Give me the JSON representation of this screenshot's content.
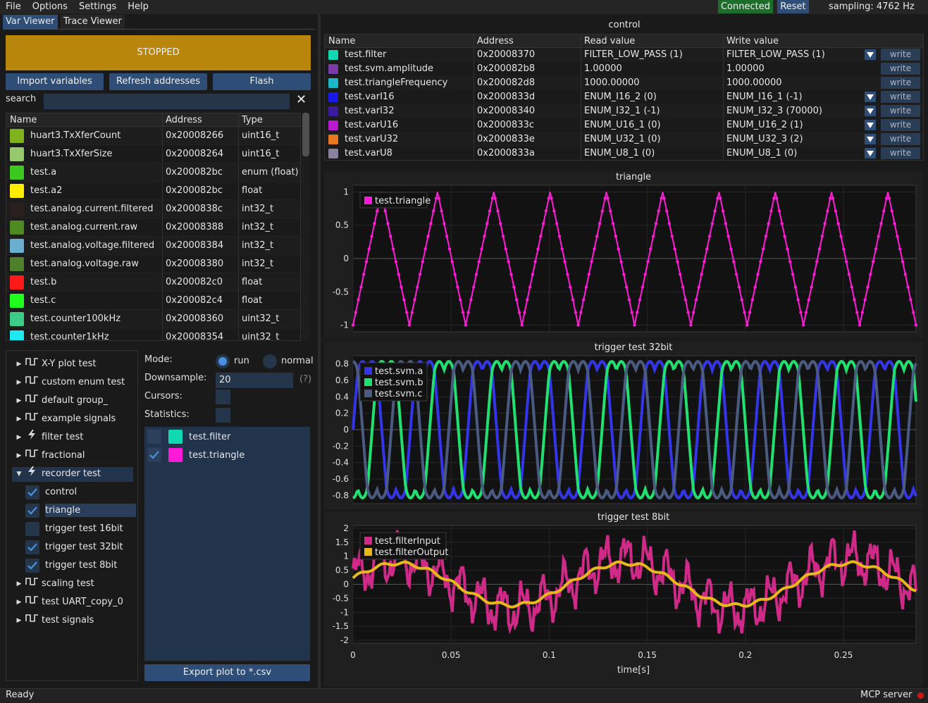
{
  "menubar": {
    "items": [
      "File",
      "Options",
      "Settings",
      "Help"
    ]
  },
  "status_top": {
    "connected": "Connected",
    "reset": "Reset",
    "sampling": "sampling: 4762 Hz"
  },
  "tabs": [
    "Var Viewer",
    "Trace Viewer"
  ],
  "state_button": "STOPPED",
  "toolbar": {
    "import": "Import variables",
    "refresh": "Refresh addresses",
    "flash": "Flash"
  },
  "search": {
    "label": "search",
    "value": "",
    "clear_icon": "close-icon"
  },
  "var_table": {
    "headers": [
      "Name",
      "Address",
      "Type"
    ],
    "rows": [
      {
        "name": "huart3.TxXferCount",
        "address": "0x20008266",
        "type": "uint16_t",
        "color": "#7fb21d"
      },
      {
        "name": "huart3.TxXferSize",
        "address": "0x20008264",
        "type": "uint16_t",
        "color": "#96c86e"
      },
      {
        "name": "test.a",
        "address": "0x200082bc",
        "type": "enum (float)",
        "color": "#3cc81e"
      },
      {
        "name": "test.a2",
        "address": "0x200082bc",
        "type": "float",
        "color": "#ffee00"
      },
      {
        "name": "test.analog.current.filtered",
        "address": "0x2000838c",
        "type": "int32_t",
        "color": "#2a201e"
      },
      {
        "name": "test.analog.current.raw",
        "address": "0x20008388",
        "type": "int32_t",
        "color": "#4e8a22"
      },
      {
        "name": "test.analog.voltage.filtered",
        "address": "0x20008384",
        "type": "int32_t",
        "color": "#6aaed0"
      },
      {
        "name": "test.analog.voltage.raw",
        "address": "0x20008380",
        "type": "int32_t",
        "color": "#4e7f2a"
      },
      {
        "name": "test.b",
        "address": "0x200082c0",
        "type": "float",
        "color": "#ff1a1a"
      },
      {
        "name": "test.c",
        "address": "0x200082c4",
        "type": "float",
        "color": "#1eff1e"
      },
      {
        "name": "test.counter100kHz",
        "address": "0x20008360",
        "type": "uint32_t",
        "color": "#3ccc88"
      },
      {
        "name": "test.counter1kHz",
        "address": "0x20008354",
        "type": "uint32_t",
        "color": "#1ee8f0"
      }
    ]
  },
  "tree": {
    "items": [
      {
        "label": "X-Y plot test",
        "icon": "waveform-icon",
        "expanded": false
      },
      {
        "label": "custom enum test",
        "icon": "waveform-icon",
        "expanded": false
      },
      {
        "label": "default group_",
        "icon": "waveform-icon",
        "expanded": false
      },
      {
        "label": "example signals",
        "icon": "waveform-icon",
        "expanded": false
      },
      {
        "label": "filter test",
        "icon": "lightning-icon",
        "expanded": false
      },
      {
        "label": "fractional",
        "icon": "waveform-icon",
        "expanded": false
      },
      {
        "label": "recorder test",
        "icon": "lightning-icon",
        "expanded": true
      },
      {
        "label": "control",
        "checked": true,
        "child": true
      },
      {
        "label": "triangle",
        "checked": true,
        "child": true,
        "selected": true
      },
      {
        "label": "trigger test 16bit",
        "checked": false,
        "child": true
      },
      {
        "label": "trigger test 32bit",
        "checked": true,
        "child": true
      },
      {
        "label": "trigger test 8bit",
        "checked": true,
        "child": true
      },
      {
        "label": "scaling test",
        "icon": "waveform-icon",
        "expanded": false
      },
      {
        "label": "test UART_copy_0",
        "icon": "waveform-icon",
        "expanded": false
      },
      {
        "label": "test signals",
        "icon": "waveform-icon",
        "expanded": false
      }
    ]
  },
  "plot_settings": {
    "mode_label": "Mode:",
    "mode_run": "run",
    "mode_normal": "normal",
    "downsample_label": "Downsample:",
    "downsample_value": "20",
    "downsample_help": "(?)",
    "cursors_label": "Cursors:",
    "statistics_label": "Statistics:"
  },
  "selected_vars": [
    {
      "name": "test.filter",
      "checked": false,
      "color": "#10d8b0"
    },
    {
      "name": "test.triangle",
      "checked": true,
      "color": "#ff1ad8"
    }
  ],
  "export_button": "Export plot to *.csv",
  "control": {
    "title": "control",
    "headers": [
      "Name",
      "Address",
      "Read value",
      "Write value"
    ],
    "write_label": "write",
    "rows": [
      {
        "name": "test.filter",
        "address": "0x20008370",
        "read": "FILTER_LOW_PASS (1)",
        "write": "FILTER_LOW_PASS (1)",
        "color": "#10d8b0",
        "dropdown": true
      },
      {
        "name": "test.svm.amplitude",
        "address": "0x200082b8",
        "read": "1.00000",
        "write": "1.00000",
        "color": "#7a3aa8",
        "dropdown": false
      },
      {
        "name": "test.triangleFrequency",
        "address": "0x200082d8",
        "read": "1000.00000",
        "write": "1000.00000",
        "color": "#1ab8c8",
        "dropdown": false
      },
      {
        "name": "test.varI16",
        "address": "0x2000833d",
        "read": "ENUM_I16_2 (0)",
        "write": "ENUM_I16_1 (-1)",
        "color": "#1a1ae8",
        "dropdown": true
      },
      {
        "name": "test.varI32",
        "address": "0x20008340",
        "read": "ENUM_I32_1 (-1)",
        "write": "ENUM_I32_3 (70000)",
        "color": "#3a1aa0",
        "dropdown": true
      },
      {
        "name": "test.varU16",
        "address": "0x2000833c",
        "read": "ENUM_U16_1 (0)",
        "write": "ENUM_U16_2 (1)",
        "color": "#b81ad0",
        "dropdown": true
      },
      {
        "name": "test.varU32",
        "address": "0x2000833e",
        "read": "ENUM_U32_1 (0)",
        "write": "ENUM_U32_3 (2)",
        "color": "#e87820",
        "dropdown": true
      },
      {
        "name": "test.varU8",
        "address": "0x2000833a",
        "read": "ENUM_U8_1 (0)",
        "write": "ENUM_U8_1 (0)",
        "color": "#8a80a0",
        "dropdown": true
      }
    ]
  },
  "chart_data": [
    {
      "type": "line",
      "title": "triangle",
      "ylim": [
        -1.1,
        1.1
      ],
      "yticks": [
        "1",
        "0.5",
        "0",
        "-0.5",
        "-1"
      ],
      "series": [
        {
          "name": "test.triangle",
          "color": "#ff1ad8",
          "shape": "triangle",
          "cycles": 10,
          "amplitude": 1
        }
      ]
    },
    {
      "type": "line",
      "title": "trigger test 32bit",
      "ylim": [
        -0.9,
        0.9
      ],
      "yticks": [
        "0.8",
        "0.6",
        "0.4",
        "0.2",
        "0",
        "-0.2",
        "-0.4",
        "-0.6",
        "-0.8"
      ],
      "series": [
        {
          "name": "test.svm.a",
          "color": "#3434e8",
          "phase": 0
        },
        {
          "name": "test.svm.b",
          "color": "#20e070",
          "phase": 2.094
        },
        {
          "name": "test.svm.c",
          "color": "#4a5a80",
          "phase": 4.189
        }
      ]
    },
    {
      "type": "line",
      "title": "trigger test 8bit",
      "xlabel": "time[s]",
      "xlim": [
        0,
        0.287
      ],
      "ylim": [
        -2.1,
        2.1
      ],
      "xticks": [
        "0",
        "0.05",
        "0.1",
        "0.15",
        "0.2",
        "0.25"
      ],
      "yticks": [
        "2",
        "1.5",
        "1",
        "0.5",
        "0",
        "-0.5",
        "-1",
        "-1.5",
        "-2"
      ],
      "series": [
        {
          "name": "test.filterInput",
          "color": "#d02a88"
        },
        {
          "name": "test.filterOutput",
          "color": "#e8b81a"
        }
      ]
    }
  ],
  "statusbar": {
    "ready": "Ready",
    "mcp": "MCP server"
  }
}
